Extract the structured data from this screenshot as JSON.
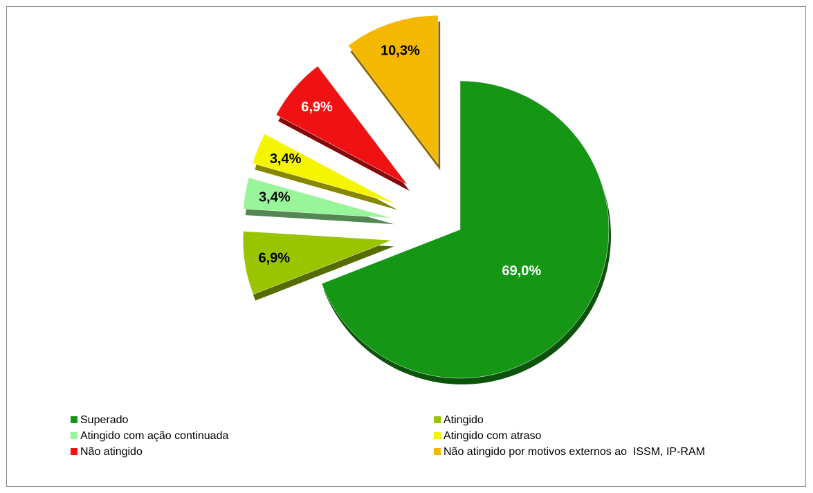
{
  "chart_data": {
    "type": "pie",
    "categories": [
      "Superado",
      "Atingido",
      "Atingido com ação continuada",
      "Atingido com atraso",
      "Não atingido",
      "Não atingido por motivos externos ao  ISSM, IP-RAM"
    ],
    "values": [
      69.0,
      6.9,
      3.4,
      3.4,
      6.9,
      10.3
    ],
    "value_labels": [
      "69,0%",
      "6,9%",
      "3,4%",
      "3,4%",
      "6,9%",
      "10,3%"
    ],
    "colors": [
      "#159615",
      "#99c400",
      "#99f599",
      "#f5f500",
      "#f01212",
      "#f5b800"
    ],
    "legend": "bottom"
  }
}
